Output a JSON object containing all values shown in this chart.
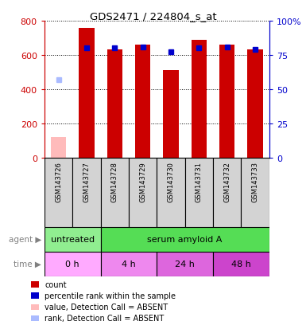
{
  "title": "GDS2471 / 224804_s_at",
  "samples": [
    "GSM143726",
    "GSM143727",
    "GSM143728",
    "GSM143729",
    "GSM143730",
    "GSM143731",
    "GSM143732",
    "GSM143733"
  ],
  "counts": [
    null,
    760,
    630,
    660,
    510,
    690,
    660,
    630
  ],
  "percentile_ranks": [
    null,
    80,
    80,
    81,
    77,
    80,
    81,
    79
  ],
  "absent_value": 120,
  "absent_rank": 57,
  "absent_indices": [
    0
  ],
  "ylim_left": [
    0,
    800
  ],
  "ylim_right": [
    0,
    100
  ],
  "yticks_left": [
    0,
    200,
    400,
    600,
    800
  ],
  "yticks_right": [
    0,
    25,
    50,
    75,
    100
  ],
  "agent_groups": [
    {
      "label": "untreated",
      "color": "#90ee90",
      "start": 0,
      "end": 2
    },
    {
      "label": "serum amyloid A",
      "color": "#55dd55",
      "start": 2,
      "end": 8
    }
  ],
  "time_groups": [
    {
      "label": "0 h",
      "color": "#ffaaff",
      "start": 0,
      "end": 2
    },
    {
      "label": "4 h",
      "color": "#ee88ee",
      "start": 2,
      "end": 4
    },
    {
      "label": "24 h",
      "color": "#dd66dd",
      "start": 4,
      "end": 6
    },
    {
      "label": "48 h",
      "color": "#cc44cc",
      "start": 6,
      "end": 8
    }
  ],
  "bar_color": "#cc0000",
  "rank_color": "#0000cc",
  "absent_bar_color": "#ffbbbb",
  "absent_rank_color": "#aabbff",
  "legend_items": [
    {
      "color": "#cc0000",
      "label": "count"
    },
    {
      "color": "#0000cc",
      "label": "percentile rank within the sample"
    },
    {
      "color": "#ffbbbb",
      "label": "value, Detection Call = ABSENT"
    },
    {
      "color": "#aabbff",
      "label": "rank, Detection Call = ABSENT"
    }
  ],
  "left_axis_color": "#cc0000",
  "right_axis_color": "#0000cc",
  "bar_width": 0.55,
  "rank_marker_size": 5,
  "sample_box_color": "#d3d3d3"
}
